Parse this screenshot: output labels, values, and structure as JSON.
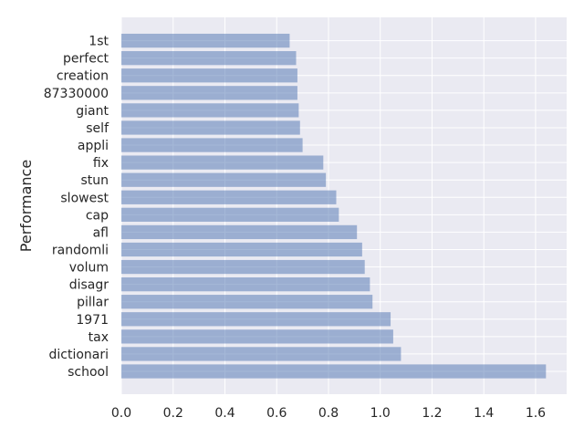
{
  "chart_data": {
    "type": "bar",
    "orientation": "horizontal",
    "categories": [
      "school",
      "dictionari",
      "tax",
      "1971",
      "pillar",
      "disagr",
      "volum",
      "randomli",
      "afl",
      "cap",
      "slowest",
      "stun",
      "fix",
      "appli",
      "self",
      "giant",
      "87330000",
      "creation",
      "perfect",
      "1st"
    ],
    "values": [
      1.64,
      1.08,
      1.05,
      1.04,
      0.97,
      0.96,
      0.94,
      0.93,
      0.91,
      0.84,
      0.83,
      0.79,
      0.78,
      0.7,
      0.69,
      0.685,
      0.68,
      0.68,
      0.675,
      0.65
    ],
    "title": "",
    "xlabel": "",
    "ylabel": "Performance",
    "xlim": [
      0,
      1.72
    ],
    "xticks": [
      "0.0",
      "0.2",
      "0.4",
      "0.6",
      "0.8",
      "1.0",
      "1.2",
      "1.4",
      "1.6"
    ],
    "grid": true,
    "colors": {
      "bar": "#4c72b0",
      "plot_background": "#eaeaf2",
      "grid": "#ffffff",
      "text": "#262626"
    }
  }
}
